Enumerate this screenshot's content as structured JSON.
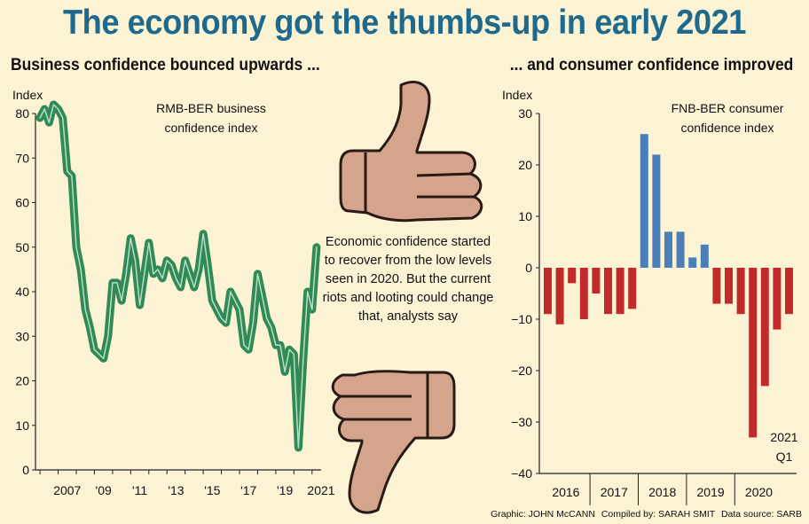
{
  "header": {
    "title": "The economy got the thumbs-up in early 2021",
    "subtitle_left": "Business confidence bounced upwards ...",
    "subtitle_right": "... and consumer confidence improved"
  },
  "note": "Economic confidence started to recover from the low levels seen in 2020. But the current riots and looting could change that, analysts say",
  "credits": {
    "graphic": "Graphic: JOHN McCANN",
    "compiled": "Compiled by: SARAH SMIT",
    "source": "Data source: SARB"
  },
  "colors": {
    "line": "#2f8a55",
    "line_highlight": "#b9dcc4",
    "positive_bar": "#4a7fb8",
    "negative_bar": "#c02a2a",
    "title": "#1f6a8c",
    "background": "#fbf3d3",
    "thumb": "#d4a48c"
  },
  "icons": [
    "thumbs-up-icon",
    "thumbs-down-icon"
  ],
  "chart_data": [
    {
      "type": "line",
      "label": "RMB-BER business confidence index",
      "ylabel": "Index",
      "ylim": [
        0,
        80
      ],
      "yticks": [
        0,
        10,
        20,
        30,
        40,
        50,
        60,
        70,
        80
      ],
      "xlim": [
        2005.75,
        2021.5
      ],
      "xtick_labels": [
        {
          "x": 2007,
          "label": "2007"
        },
        {
          "x": 2009,
          "label": "'09"
        },
        {
          "x": 2011,
          "label": "'11"
        },
        {
          "x": 2013,
          "label": "'13"
        },
        {
          "x": 2015,
          "label": "'15"
        },
        {
          "x": 2017,
          "label": "'17"
        },
        {
          "x": 2019,
          "label": "'19"
        },
        {
          "x": 2021,
          "label": "2021"
        }
      ],
      "x": [
        2006.0,
        2006.25,
        2006.5,
        2006.75,
        2007.0,
        2007.25,
        2007.5,
        2007.75,
        2008.0,
        2008.25,
        2008.5,
        2008.75,
        2009.0,
        2009.25,
        2009.5,
        2009.75,
        2010.0,
        2010.25,
        2010.5,
        2010.75,
        2011.0,
        2011.25,
        2011.5,
        2011.75,
        2012.0,
        2012.25,
        2012.5,
        2012.75,
        2013.0,
        2013.25,
        2013.5,
        2013.75,
        2014.0,
        2014.25,
        2014.5,
        2014.75,
        2015.0,
        2015.25,
        2015.5,
        2015.75,
        2016.0,
        2016.25,
        2016.5,
        2016.75,
        2017.0,
        2017.25,
        2017.5,
        2017.75,
        2018.0,
        2018.25,
        2018.5,
        2018.75,
        2019.0,
        2019.25,
        2019.5,
        2019.75,
        2020.0,
        2020.25,
        2020.5,
        2020.75,
        2021.0,
        2021.25
      ],
      "values": [
        79,
        81,
        78,
        82,
        81,
        79,
        67,
        66,
        50,
        45,
        36,
        32,
        27,
        26,
        25,
        30,
        42,
        42,
        38,
        44,
        52,
        47,
        37,
        44,
        51,
        44,
        45,
        43,
        47,
        46,
        43,
        41,
        47,
        44,
        41,
        45,
        53,
        46,
        38,
        36,
        34,
        33,
        40,
        38,
        36,
        28,
        27,
        33,
        44,
        39,
        34,
        32,
        28,
        28,
        22,
        27,
        26,
        5,
        24,
        40,
        36,
        50
      ]
    },
    {
      "type": "bar",
      "label": "FNB-BER consumer confidence index",
      "ylabel": "Index",
      "ylim": [
        -40,
        30
      ],
      "yticks": [
        -40,
        -30,
        -20,
        -10,
        0,
        10,
        20,
        30
      ],
      "years": [
        "2016",
        "2017",
        "2018",
        "2019",
        "2020"
      ],
      "categories": [
        "2016Q1",
        "2016Q2",
        "2016Q3",
        "2016Q4",
        "2017Q1",
        "2017Q2",
        "2017Q3",
        "2017Q4",
        "2018Q1",
        "2018Q2",
        "2018Q3",
        "2018Q4",
        "2019Q1",
        "2019Q2",
        "2019Q3",
        "2019Q4",
        "2020Q1",
        "2020Q2",
        "2020Q3",
        "2020Q4",
        "2021Q1"
      ],
      "values": [
        -9,
        -11,
        -3,
        -10,
        -5,
        -9,
        -9,
        -8,
        26,
        22,
        7,
        7,
        2,
        4.5,
        -7,
        -7,
        -9,
        -33,
        -23,
        -12,
        -9
      ],
      "annotation": "2021 Q1"
    }
  ]
}
